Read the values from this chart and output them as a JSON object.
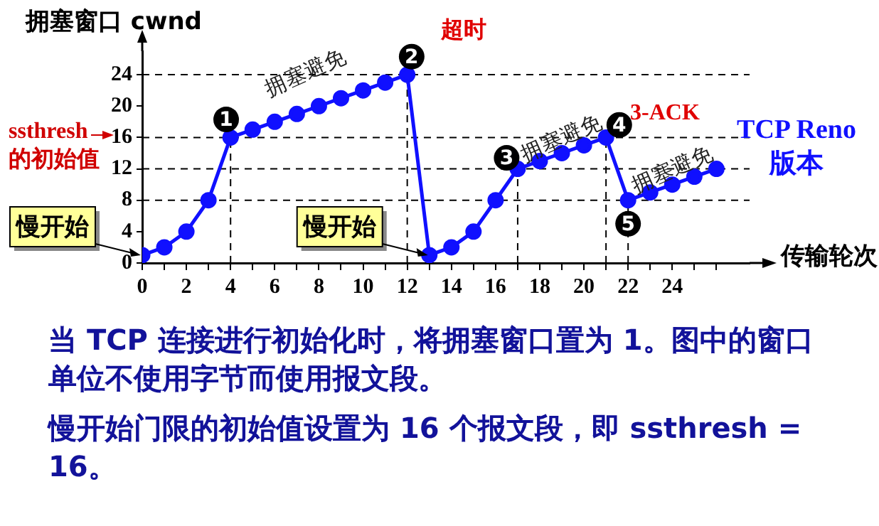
{
  "chart_data": {
    "type": "line",
    "ylabel": "拥塞窗口 cwnd",
    "xlabel": "传输轮次",
    "x": [
      0,
      1,
      2,
      3,
      4,
      5,
      6,
      7,
      8,
      9,
      10,
      11,
      12,
      13,
      14,
      15,
      16,
      17,
      18,
      19,
      20,
      21,
      22,
      23,
      24,
      25,
      26
    ],
    "series": [
      {
        "color": "#1010ff",
        "values": [
          1,
          2,
          4,
          8,
          16,
          17,
          18,
          19,
          20,
          21,
          22,
          23,
          24,
          1,
          2,
          4,
          8,
          12,
          13,
          14,
          15,
          16,
          8,
          9,
          10,
          11,
          12
        ]
      }
    ],
    "marker": "circle",
    "line_style": "solid",
    "grid": false,
    "legend": false,
    "xlim": [
      0,
      27.5
    ],
    "ylim": [
      0,
      27
    ],
    "xticks": [
      0,
      {
        "value": 1,
        "label": null
      },
      2,
      {
        "value": 3,
        "label": null
      },
      4,
      {
        "value": 5,
        "label": null
      },
      6,
      {
        "value": 7,
        "label": null
      },
      8,
      {
        "value": 9,
        "label": null
      },
      10,
      {
        "value": 11,
        "label": null
      },
      12,
      {
        "value": 13,
        "label": null
      },
      14,
      {
        "value": 15,
        "label": null
      },
      16,
      {
        "value": 17,
        "label": null
      },
      18,
      {
        "value": 19,
        "label": null
      },
      20,
      {
        "value": 21,
        "label": null
      },
      22,
      {
        "value": 23,
        "label": null
      },
      24,
      {
        "value": 25,
        "label": null
      },
      {
        "value": 26,
        "label": null
      }
    ],
    "yticks": [
      0,
      4,
      8,
      12,
      16,
      20,
      24
    ],
    "ref_lines": [
      {
        "axis": "y",
        "value": 24,
        "line_style": "dashed",
        "color": "#000000"
      },
      {
        "axis": "y",
        "value": 16,
        "line_style": "dashed",
        "color": "#000000"
      },
      {
        "axis": "y",
        "value": 12,
        "line_style": "dashed",
        "color": "#000000"
      },
      {
        "axis": "y",
        "value": 8,
        "line_style": "dashed",
        "color": "#000000"
      },
      {
        "axis": "x",
        "value": 4,
        "line_style": "dashed",
        "color": "#000000"
      },
      {
        "axis": "x",
        "value": 12,
        "line_style": "dashed",
        "color": "#000000"
      },
      {
        "axis": "x",
        "value": 17,
        "line_style": "dashed",
        "color": "#000000"
      },
      {
        "axis": "x",
        "value": 21,
        "line_style": "dashed",
        "color": "#000000"
      },
      {
        "axis": "x",
        "value": 22,
        "line_style": "dashed",
        "color": "#000000"
      }
    ],
    "annotations": [
      {
        "text": "1",
        "x": 3.8,
        "y": 18.3
      },
      {
        "text": "2",
        "x": 12.2,
        "y": 26.3
      },
      {
        "text": "3",
        "x": 16.5,
        "y": 13.4
      },
      {
        "text": "4",
        "x": 21.6,
        "y": 17.6
      },
      {
        "text": "5",
        "x": 22,
        "y": 5
      },
      {
        "text": "慢开始",
        "x": 0,
        "y": 1
      },
      {
        "text": "慢开始",
        "x": 13,
        "y": 1
      },
      {
        "text": "ssthresh 的初始值",
        "x": 0,
        "y": 16
      },
      "超时",
      "拥塞避免",
      "拥塞避免",
      "3-ACK",
      "拥塞避免",
      "TCP Reno 版本",
      "当 TCP 连接进行初始化时，将拥塞窗口置为 1。图中的窗口单位不使用字节而使用报文段。",
      "慢开始门限的初始值设置为 16 个报文段，即 ssthresh = 16。"
    ]
  }
}
